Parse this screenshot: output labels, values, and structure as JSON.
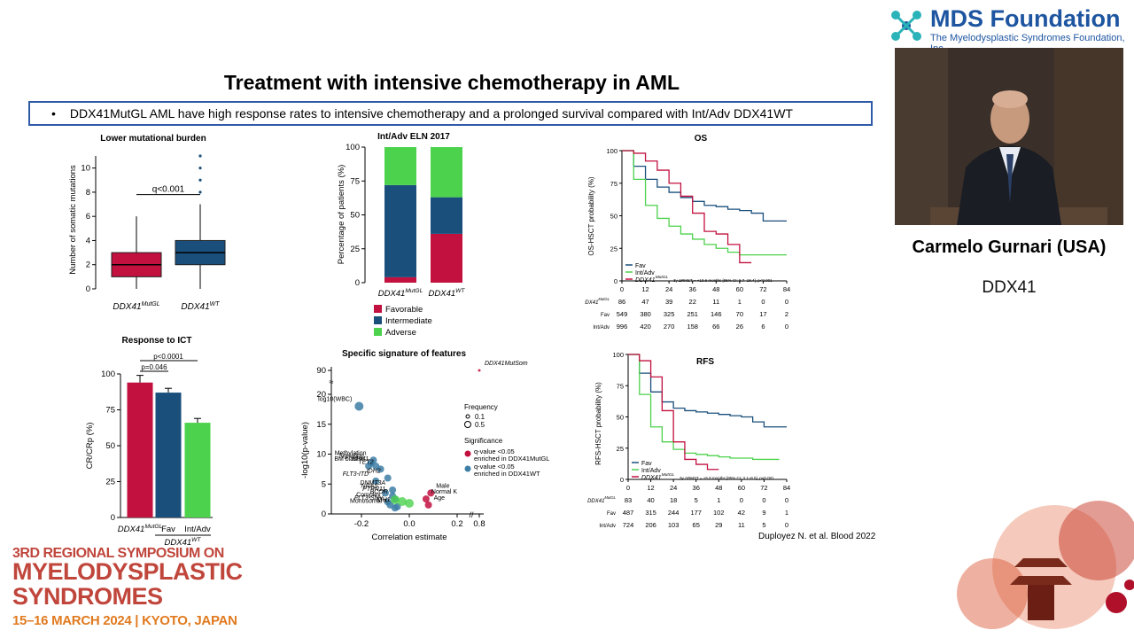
{
  "slide": {
    "title": "Treatment with intensive chemotherapy in AML",
    "bullet_marker": "•",
    "bullet": "DDX41MutGL AML have high response rates to intensive chemotherapy and a prolonged survival compared with Int/Adv DDX41WT",
    "citation": "Duployez N. et al. Blood 2022"
  },
  "speaker": {
    "name": "Carmelo Gurnari (USA)",
    "topic": "DDX41"
  },
  "logo": {
    "title": "MDS Foundation",
    "subtitle": "The Myelodysplastic Syndromes Foundation, Inc."
  },
  "event": {
    "line1": "3RD REGIONAL SYMPOSIUM ON",
    "line2": "MYELODYSPLASTIC",
    "line3": "SYNDROMES",
    "line4": "15–16 MARCH 2024 | KYOTO, JAPAN"
  },
  "colors": {
    "ddx41_mut": "#c2103f",
    "fav": "#1a4f7c",
    "int_adv": "#4cd24c",
    "accent_blue": "#2f5aa6"
  },
  "chart_data": [
    {
      "type": "box",
      "title": "Lower mutational burden",
      "ylabel": "Number of somatic mutations",
      "ylim": [
        0,
        11
      ],
      "yticks": [
        "0",
        "2",
        "4",
        "6",
        "8",
        "10"
      ],
      "annotation": "q<0.001",
      "categories": [
        "DDX41MutGL",
        "DDX41WT"
      ],
      "boxes": [
        {
          "name": "DDX41MutGL",
          "q1": 1,
          "median": 2,
          "q3": 3,
          "whisker_low": 0,
          "whisker_high": 6,
          "outliers": []
        },
        {
          "name": "DDX41WT",
          "q1": 2,
          "median": 3,
          "q3": 4,
          "whisker_low": 0,
          "whisker_high": 7,
          "outliers": [
            8,
            9,
            10,
            11
          ]
        }
      ]
    },
    {
      "type": "bar",
      "title": "Int/Adv ELN 2017",
      "ylabel": "Percentage of patients (%)",
      "ylim": [
        0,
        100
      ],
      "yticks": [
        "0",
        "25",
        "50",
        "75",
        "100"
      ],
      "categories": [
        "DDX41MutGL",
        "DDX41WT"
      ],
      "series": [
        {
          "name": "Favorable",
          "values": [
            4,
            36
          ]
        },
        {
          "name": "Intermediate",
          "values": [
            68,
            27
          ]
        },
        {
          "name": "Adverse",
          "values": [
            28,
            37
          ]
        }
      ]
    },
    {
      "type": "line",
      "title": "OS",
      "ylabel": "OS-HSCT probability (%)",
      "xlim": [
        0,
        84
      ],
      "ylim": [
        0,
        100
      ],
      "xticks": [
        "0",
        "12",
        "24",
        "36",
        "48",
        "60",
        "72",
        "84"
      ],
      "yticks": [
        "0",
        "25",
        "50",
        "75",
        "100"
      ],
      "legend": [
        "Fav",
        "Int/Adv",
        "DDX41MutGL"
      ],
      "note": "3y ΔRMST = +13.6 months [95% CI: 8.7–18.4], p<0.001",
      "risk_table": [
        {
          "label": "DDX41MutGL",
          "values": [
            "86",
            "47",
            "39",
            "22",
            "11",
            "1",
            "0",
            "0"
          ]
        },
        {
          "label": "Fav",
          "values": [
            "549",
            "380",
            "325",
            "251",
            "146",
            "70",
            "17",
            "2"
          ]
        },
        {
          "label": "Int/Adv",
          "values": [
            "996",
            "420",
            "270",
            "158",
            "66",
            "26",
            "6",
            "0"
          ]
        }
      ],
      "series": [
        {
          "name": "Fav",
          "x": [
            0,
            6,
            12,
            18,
            24,
            30,
            36,
            42,
            48,
            54,
            60,
            66,
            72,
            84
          ],
          "y": [
            100,
            88,
            78,
            72,
            68,
            64,
            61,
            58,
            57,
            55,
            54,
            52,
            46,
            46
          ]
        },
        {
          "name": "Int/Adv",
          "x": [
            0,
            6,
            12,
            18,
            24,
            30,
            36,
            42,
            48,
            54,
            60,
            66,
            72,
            84
          ],
          "y": [
            100,
            78,
            58,
            48,
            42,
            36,
            32,
            28,
            25,
            22,
            20,
            20,
            20,
            20
          ]
        },
        {
          "name": "DDX41MutGL",
          "x": [
            0,
            6,
            12,
            18,
            24,
            30,
            36,
            42,
            48,
            54,
            60,
            66
          ],
          "y": [
            100,
            98,
            92,
            85,
            75,
            65,
            52,
            38,
            36,
            28,
            14,
            14
          ]
        }
      ]
    },
    {
      "type": "line",
      "title": "RFS",
      "ylabel": "RFS-HSCT probability (%)",
      "xlim": [
        0,
        84
      ],
      "ylim": [
        0,
        100
      ],
      "xticks": [
        "0",
        "12",
        "24",
        "36",
        "48",
        "60",
        "72",
        "84"
      ],
      "yticks": [
        "0",
        "25",
        "50",
        "75",
        "100"
      ],
      "legend": [
        "Fav",
        "Int/Adv",
        "DDX41MutGL"
      ],
      "note": "3y ΔRMST = +5.8 months [95% CI: 3.1–8.5], p<0.001",
      "risk_table": [
        {
          "label": "DDX41MutGL",
          "values": [
            "83",
            "40",
            "18",
            "5",
            "1",
            "0",
            "0",
            "0"
          ]
        },
        {
          "label": "Fav",
          "values": [
            "487",
            "315",
            "244",
            "177",
            "102",
            "42",
            "9",
            "1"
          ]
        },
        {
          "label": "Int/Adv",
          "values": [
            "724",
            "206",
            "103",
            "65",
            "29",
            "11",
            "5",
            "0"
          ]
        }
      ],
      "series": [
        {
          "name": "Fav",
          "x": [
            0,
            6,
            12,
            18,
            24,
            30,
            36,
            42,
            48,
            54,
            60,
            66,
            72,
            84
          ],
          "y": [
            100,
            85,
            70,
            62,
            57,
            55,
            54,
            53,
            52,
            51,
            50,
            46,
            42,
            42
          ]
        },
        {
          "name": "Int/Adv",
          "x": [
            0,
            6,
            12,
            18,
            24,
            30,
            36,
            42,
            48,
            54,
            60,
            66,
            72,
            80
          ],
          "y": [
            100,
            68,
            42,
            30,
            24,
            21,
            20,
            19,
            18,
            17,
            17,
            16,
            16,
            16
          ]
        },
        {
          "name": "DDX41MutGL",
          "x": [
            0,
            6,
            12,
            18,
            24,
            30,
            36,
            42,
            48
          ],
          "y": [
            100,
            95,
            82,
            55,
            30,
            16,
            12,
            8,
            8
          ]
        }
      ]
    },
    {
      "type": "bar",
      "title": "Response to ICT",
      "ylabel": "CR/CRp (%)",
      "ylim": [
        0,
        100
      ],
      "yticks": [
        "0",
        "25",
        "50",
        "75",
        "100"
      ],
      "categories": [
        "DDX41MutGL",
        "Fav",
        "Int/Adv"
      ],
      "group_label": "DDX41WT",
      "values": [
        94,
        87,
        66
      ],
      "errors": [
        5,
        3,
        3
      ],
      "annotations": [
        "p<0.0001",
        "p=0.046"
      ]
    },
    {
      "type": "scatter",
      "title": "Specific signature of features",
      "xlabel": "Correlation estimate",
      "ylabel": "-log10(p-value)",
      "xticks": [
        "-0.2",
        "0.0",
        "0.2",
        "0.8"
      ],
      "yticks": [
        "0",
        "5",
        "10",
        "15",
        "20",
        "90"
      ],
      "legend_frequency_title": "Frequency",
      "legend_frequency": [
        "0.1",
        "0.5"
      ],
      "legend_significance_title": "Significance",
      "legend_significance": [
        "q-value <0.05 enriched in DDX41MutGL",
        "q-value <0.05 enriched in DDX41WT"
      ],
      "points": [
        {
          "label": "log10(WBC)",
          "x": -0.21,
          "y": 18,
          "group": "WT"
        },
        {
          "label": "DDX41MutSom",
          "x": 0.8,
          "y": 90,
          "group": "MutGL"
        },
        {
          "label": "Methylation",
          "x": -0.15,
          "y": 9,
          "group": "WT"
        },
        {
          "label": "Signaling",
          "x": -0.16,
          "y": 8.5,
          "group": "WT"
        },
        {
          "label": "NPM1",
          "x": -0.14,
          "y": 8,
          "group": "WT"
        },
        {
          "label": "BM blasts",
          "x": -0.17,
          "y": 8,
          "group": "WT"
        },
        {
          "label": "TET2",
          "x": -0.12,
          "y": 7.5,
          "group": "WT"
        },
        {
          "label": "IDH2",
          "x": -0.09,
          "y": 6,
          "group": "WT"
        },
        {
          "label": "FLT3-ITD",
          "x": -0.14,
          "y": 5.5,
          "group": "WT"
        },
        {
          "label": "DNMT3A",
          "x": -0.07,
          "y": 4,
          "group": "WT"
        },
        {
          "label": "NRAS",
          "x": -0.1,
          "y": 3.5,
          "group": "WT"
        },
        {
          "label": "PTPN11",
          "x": -0.07,
          "y": 3,
          "group": "WT"
        },
        {
          "label": "BCOR",
          "x": -0.06,
          "y": 2.5,
          "group": "WT"
        },
        {
          "label": "Complex",
          "x": -0.09,
          "y": 2,
          "group": "WT"
        },
        {
          "label": "FLT3-SNV",
          "x": -0.08,
          "y": 1.5,
          "group": "WT"
        },
        {
          "label": "IDH1",
          "x": -0.05,
          "y": 1.2,
          "group": "WT"
        },
        {
          "label": "Monosomal K",
          "x": -0.06,
          "y": 1,
          "group": "WT"
        },
        {
          "label": "Male",
          "x": 0.09,
          "y": 3.5,
          "group": "MutGL"
        },
        {
          "label": "Normal K",
          "x": 0.07,
          "y": 2.5,
          "group": "MutGL"
        },
        {
          "label": "Age",
          "x": 0.08,
          "y": 1.5,
          "group": "MutGL"
        }
      ]
    }
  ]
}
